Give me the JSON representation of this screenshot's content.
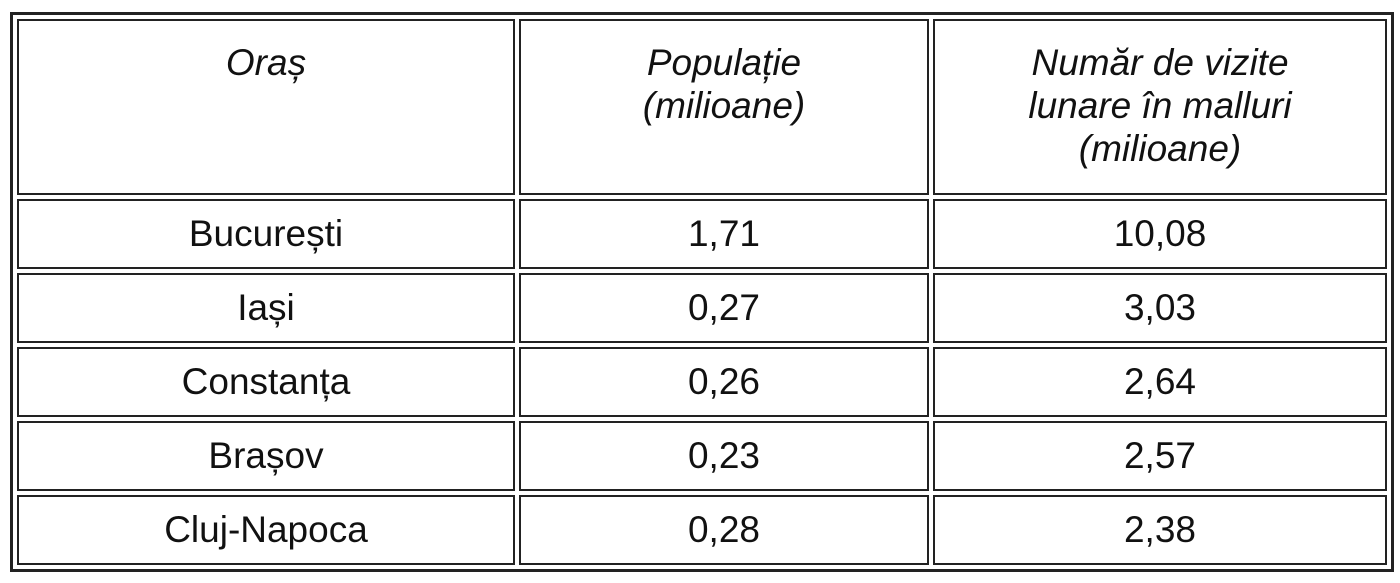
{
  "table": {
    "header": [
      [
        "Oraș"
      ],
      [
        "Populație",
        "(milioane)"
      ],
      [
        "Număr de vizite",
        "lunare în malluri",
        "(milioane)"
      ]
    ],
    "rows": [
      [
        "București",
        "1,71",
        "10,08"
      ],
      [
        "Iași",
        "0,27",
        "3,03"
      ],
      [
        "Constanța",
        "0,26",
        "2,64"
      ],
      [
        "Brașov",
        "0,23",
        "2,57"
      ],
      [
        "Cluj-Napoca",
        "0,28",
        "2,38"
      ]
    ]
  }
}
